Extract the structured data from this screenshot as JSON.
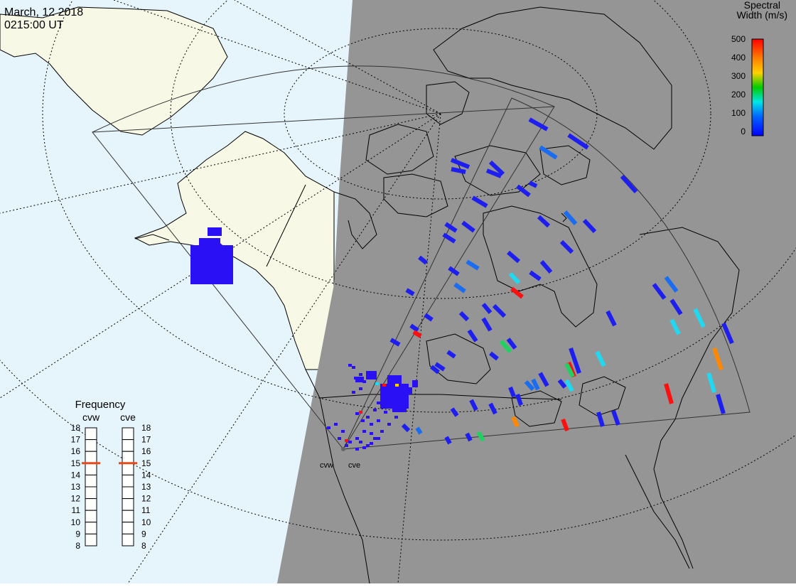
{
  "header": {
    "date": "March, 12 2018",
    "time": "0215:00 UT"
  },
  "colorbar": {
    "title_line1": "Spectral",
    "title_line2": "Width (m/s)",
    "ticks": [
      "500",
      "400",
      "300",
      "200",
      "100",
      "0"
    ],
    "colors": [
      "#ff0000",
      "#ff8000",
      "#ffd000",
      "#00cc00",
      "#00e6e6",
      "#0066ff",
      "#0000ff"
    ]
  },
  "frequency_panel": {
    "title": "Frequency",
    "radars": [
      "cvw",
      "cve"
    ],
    "ticks": [
      "18",
      "17",
      "16",
      "15",
      "14",
      "13",
      "12",
      "11",
      "10",
      "9",
      "8"
    ],
    "current_mhz": [
      15,
      15
    ],
    "marker_color": "#e84a1c"
  },
  "radar_sites": [
    {
      "id": "cvw",
      "label": "cvw"
    },
    {
      "id": "cve",
      "label": "cve"
    }
  ],
  "colors": {
    "ocean": "#e6f4fc",
    "land_day": "#f8f8e6",
    "night": "#959595"
  }
}
